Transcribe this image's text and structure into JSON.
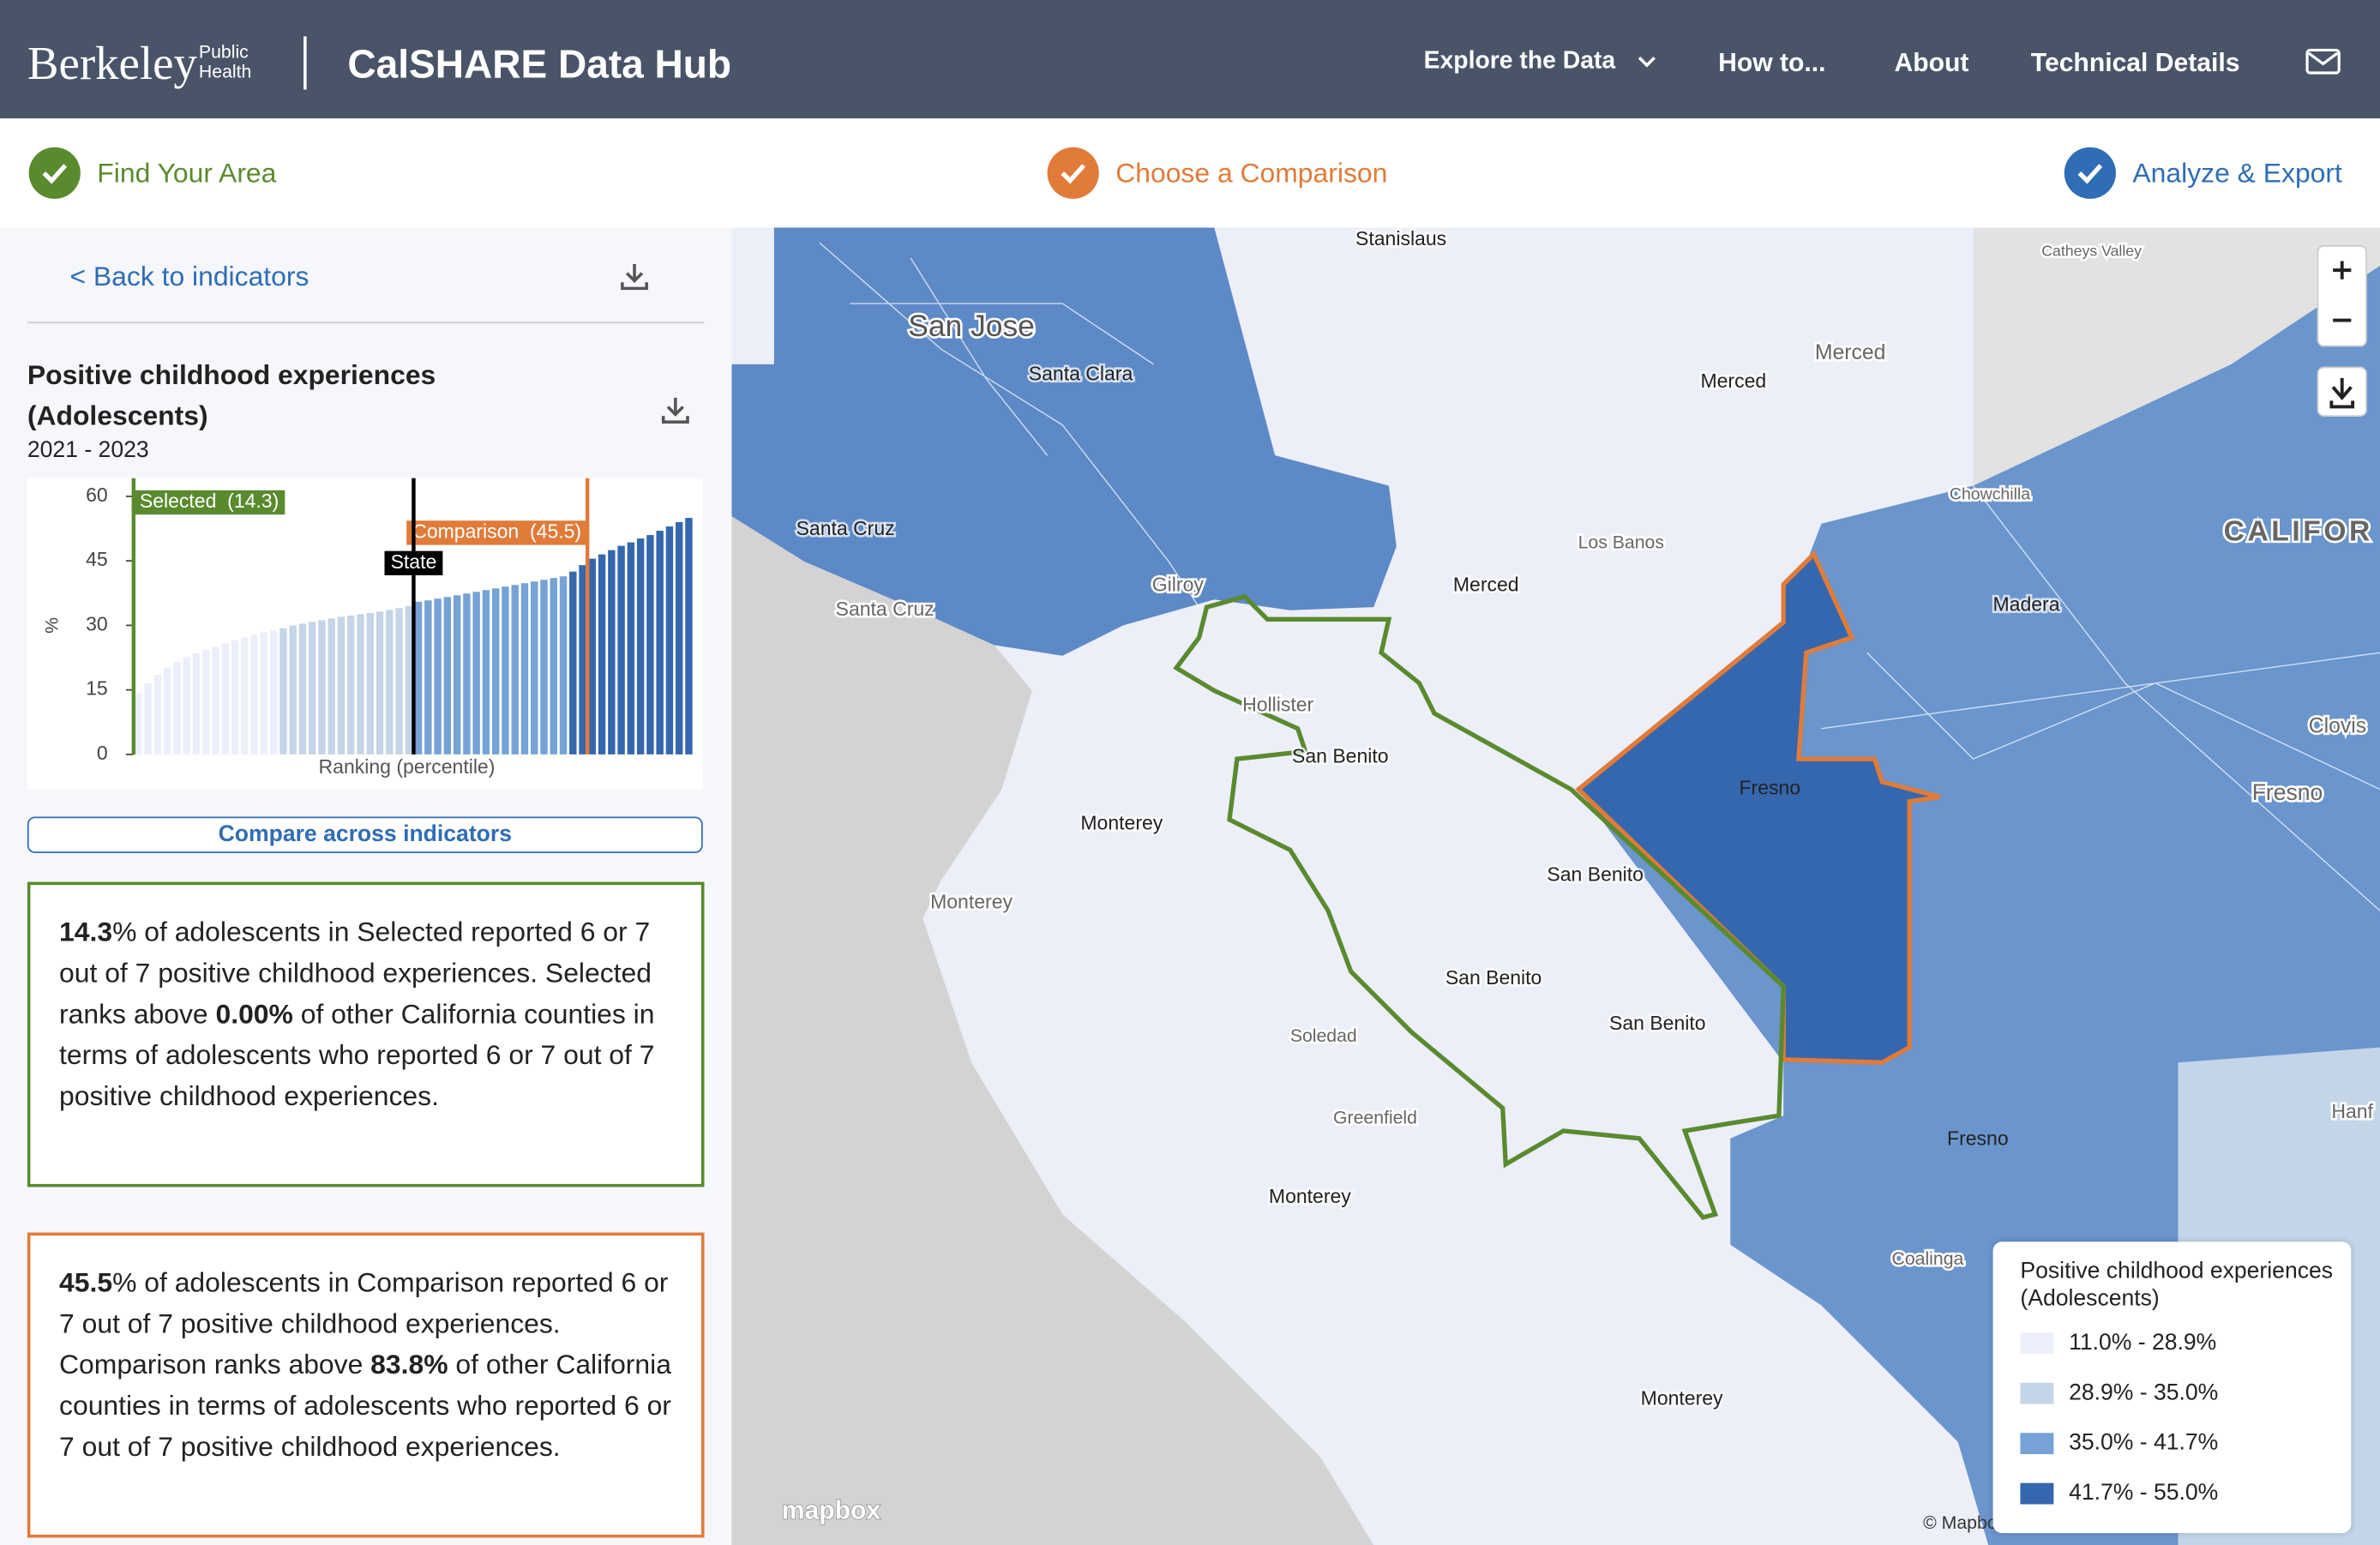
{
  "header": {
    "logo": "Berkeley",
    "logo_sub": [
      "Public",
      "Health"
    ],
    "app_title": "CalSHARE Data Hub",
    "nav": [
      "Explore the Data",
      "How to...",
      "About",
      "Technical Details"
    ]
  },
  "steps": [
    "Find Your Area",
    "Choose a Comparison",
    "Analyze & Export"
  ],
  "sidebar": {
    "back": "< Back to indicators",
    "indicator_title": "Positive childhood experiences (Adolescents)",
    "years": "2021 - 2023",
    "button": "Compare across indicators",
    "summaries": [
      {
        "segments": [
          {
            "text": "14.3",
            "bold": true
          },
          {
            "text": "% of adolescents in Selected reported 6 or 7 out of 7 positive childhood experiences. Selected ranks above ",
            "bold": false
          },
          {
            "text": "0.00%",
            "bold": true
          },
          {
            "text": " of other California counties in terms of adolescents who reported 6 or 7 out of 7 positive childhood experiences.",
            "bold": false
          }
        ]
      },
      {
        "segments": [
          {
            "text": "45.5",
            "bold": true
          },
          {
            "text": "% of adolescents in Comparison reported 6 or 7 out of 7 positive childhood experiences. Comparison ranks above ",
            "bold": false
          },
          {
            "text": "83.8%",
            "bold": true
          },
          {
            "text": " of other California counties in terms of adolescents who reported 6 or 7 out of 7 positive childhood experiences.",
            "bold": false
          }
        ]
      }
    ]
  },
  "chart_data": {
    "type": "bar",
    "x_label": "Ranking (percentile)",
    "y_label": "%",
    "ylim": [
      0,
      60
    ],
    "yticks": [
      0,
      15,
      30,
      45,
      60
    ],
    "values": [
      14.3,
      16.5,
      18.5,
      20.2,
      21.5,
      22.6,
      23.5,
      24.3,
      25.0,
      25.8,
      26.5,
      27.2,
      27.8,
      28.4,
      28.8,
      29.3,
      30.0,
      30.4,
      30.8,
      31.2,
      31.6,
      32.0,
      32.3,
      32.6,
      32.9,
      33.2,
      33.6,
      34.0,
      34.5,
      35.5,
      35.8,
      36.2,
      36.6,
      37.0,
      37.4,
      37.8,
      38.2,
      38.6,
      39.0,
      39.4,
      39.8,
      40.2,
      40.6,
      41.0,
      41.4,
      42.5,
      44.0,
      45.5,
      46.5,
      47.5,
      48.5,
      49.3,
      50.2,
      51.0,
      52.0,
      53.0,
      54.0,
      55.0
    ],
    "markers": [
      {
        "value": 14.3,
        "label": "Selected  (14.3)",
        "color": "#5a8a2e"
      },
      {
        "value": 45.5,
        "label": "Comparison  (45.5)",
        "color": "#e07b39"
      },
      {
        "value": 35.0,
        "label": "State",
        "color": "#000000"
      }
    ]
  },
  "map": {
    "labels": [
      "Stanislaus",
      "San Jose",
      "Santa Clara",
      "Merced",
      "Merced",
      "Merced",
      "Los Banos",
      "Santa Cruz",
      "Gilroy",
      "Santa Cruz",
      "Madera",
      "Chowchilla",
      "CALIFOR",
      "Catheys Valley",
      "Hollister",
      "San Benito",
      "Fresno",
      "Clovis",
      "Fresno",
      "Monterey",
      "San Benito",
      "Monterey",
      "San Benito",
      "San Benito",
      "Soledad",
      "Greenfield",
      "Fresno",
      "Monterey",
      "Coalinga",
      "Monterey",
      "Hanf"
    ],
    "attribution": [
      "mapbox",
      "© Mapbox"
    ],
    "legend": {
      "title": "Positive childhood experiences (Adolescents)",
      "items": [
        {
          "label": "11.0% - 28.9%",
          "range": [
            11.0,
            28.9
          ],
          "color": "#eceef9"
        },
        {
          "label": "28.9% - 35.0%",
          "range": [
            28.9,
            35.0
          ],
          "color": "#c4d5e8"
        },
        {
          "label": "35.0% - 41.7%",
          "range": [
            35.0,
            41.7
          ],
          "color": "#76a2d6"
        },
        {
          "label": "41.7% - 55.0%",
          "range": [
            41.7,
            55.0
          ],
          "color": "#3567ae"
        }
      ]
    }
  }
}
